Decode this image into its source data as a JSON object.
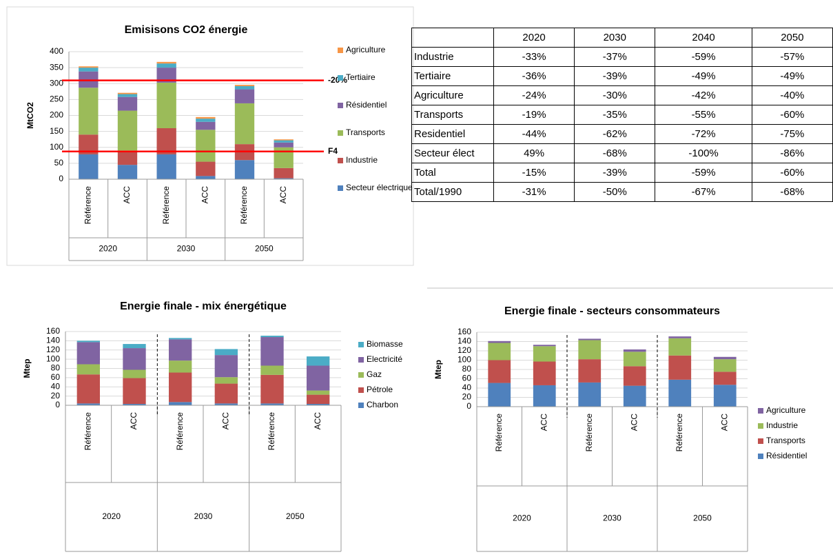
{
  "chart_data": [
    {
      "type": "bar",
      "stacked": true,
      "title": "Emisisons CO2 énergie",
      "ylabel": "MtCO2",
      "categories": [
        "Référence",
        "ACC",
        "Référence",
        "ACC",
        "Référence",
        "ACC"
      ],
      "groups": [
        "2020",
        "2030",
        "2050"
      ],
      "ylim": [
        0,
        400
      ],
      "yticks": [
        0,
        50,
        100,
        150,
        200,
        250,
        300,
        350,
        400
      ],
      "grid": true,
      "hlines": [
        {
          "value": 310,
          "label": "-20%"
        },
        {
          "value": 87,
          "label": "F4"
        }
      ],
      "hline_color": "#ff0000",
      "series": [
        {
          "name": "Secteur électrique",
          "color": "#4f81bd",
          "values": [
            78,
            45,
            78,
            10,
            60,
            3
          ]
        },
        {
          "name": "Industrie",
          "color": "#c0504d",
          "values": [
            62,
            45,
            82,
            45,
            50,
            32
          ]
        },
        {
          "name": "Transports",
          "color": "#9bbb59",
          "values": [
            147,
            125,
            143,
            100,
            128,
            65
          ]
        },
        {
          "name": "Résidentiel",
          "color": "#8064a2",
          "values": [
            51,
            43,
            47,
            25,
            44,
            15
          ]
        },
        {
          "name": "Tertiaire",
          "color": "#4bacc6",
          "values": [
            12,
            9,
            13,
            10,
            10,
            7
          ]
        },
        {
          "name": "Agriculture",
          "color": "#f79646",
          "values": [
            4,
            4,
            5,
            5,
            4,
            3
          ]
        }
      ]
    },
    {
      "type": "bar",
      "stacked": true,
      "title": "Energie finale - mix énergétique",
      "ylabel": "Mtep",
      "categories": [
        "Référence",
        "ACC",
        "Référence",
        "ACC",
        "Référence",
        "ACC"
      ],
      "groups": [
        "2020",
        "2030",
        "2050"
      ],
      "ylim": [
        0,
        160
      ],
      "yticks": [
        0,
        20,
        40,
        60,
        80,
        100,
        120,
        140,
        160
      ],
      "grid": true,
      "group_separators": true,
      "series": [
        {
          "name": "Charbon",
          "color": "#4f81bd",
          "values": [
            4,
            3,
            7,
            4,
            4,
            3
          ]
        },
        {
          "name": "Pétrole",
          "color": "#c0504d",
          "values": [
            63,
            56,
            64,
            43,
            62,
            20
          ]
        },
        {
          "name": "Gaz",
          "color": "#9bbb59",
          "values": [
            22,
            18,
            26,
            14,
            20,
            9
          ]
        },
        {
          "name": "Electricité",
          "color": "#8064a2",
          "values": [
            48,
            47,
            46,
            48,
            62,
            54
          ]
        },
        {
          "name": "Biomasse",
          "color": "#4bacc6",
          "values": [
            3,
            9,
            3,
            13,
            3,
            20
          ]
        }
      ]
    },
    {
      "type": "bar",
      "stacked": true,
      "title": "Energie finale - secteurs consommateurs",
      "ylabel": "Mtep",
      "categories": [
        "Référence",
        "ACC",
        "Référence",
        "ACC",
        "Référence",
        "ACC"
      ],
      "groups": [
        "2020",
        "2030",
        "2050"
      ],
      "ylim": [
        0,
        160
      ],
      "yticks": [
        0,
        20,
        40,
        60,
        80,
        100,
        120,
        140,
        160
      ],
      "grid": true,
      "group_separators": true,
      "series": [
        {
          "name": "Résidentiel",
          "color": "#4f81bd",
          "values": [
            51,
            46,
            52,
            45,
            58,
            47
          ]
        },
        {
          "name": "Transports",
          "color": "#c0504d",
          "values": [
            49,
            51,
            50,
            42,
            52,
            28
          ]
        },
        {
          "name": "Industrie",
          "color": "#9bbb59",
          "values": [
            37,
            33,
            41,
            31,
            37,
            27
          ]
        },
        {
          "name": "Agriculture",
          "color": "#8064a2",
          "values": [
            4,
            3,
            3,
            5,
            4,
            5
          ]
        }
      ]
    }
  ],
  "table": {
    "columns": [
      "2020",
      "2030",
      "2040",
      "2050"
    ],
    "rows": [
      {
        "label": "Industrie",
        "values": [
          "-33%",
          "-37%",
          "-59%",
          "-57%"
        ]
      },
      {
        "label": "Tertiaire",
        "values": [
          "-36%",
          "-39%",
          "-49%",
          "-49%"
        ]
      },
      {
        "label": "Agriculture",
        "values": [
          "-24%",
          "-30%",
          "-42%",
          "-40%"
        ]
      },
      {
        "label": "Transports",
        "values": [
          "-19%",
          "-35%",
          "-55%",
          "-60%"
        ]
      },
      {
        "label": "Residentiel",
        "values": [
          "-44%",
          "-62%",
          "-72%",
          "-75%"
        ]
      },
      {
        "label": "Secteur élect",
        "values": [
          "49%",
          "-68%",
          "-100%",
          "-86%"
        ]
      },
      {
        "label": "Total",
        "values": [
          "-15%",
          "-39%",
          "-59%",
          "-60%"
        ]
      },
      {
        "label": "Total/1990",
        "values": [
          "-31%",
          "-50%",
          "-67%",
          "-68%"
        ]
      }
    ]
  }
}
